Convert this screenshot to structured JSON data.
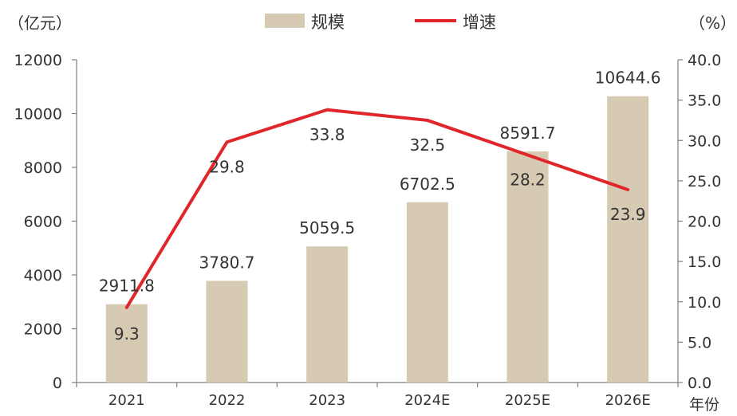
{
  "chart_data": {
    "type": "bar+line",
    "categories": [
      "2021",
      "2022",
      "2023",
      "2024E",
      "2025E",
      "2026E"
    ],
    "xlabel": "年份",
    "y_left": {
      "unit_label": "（亿元）",
      "ylim": [
        0,
        12000
      ],
      "ticks": [
        "0",
        "2000",
        "4000",
        "6000",
        "8000",
        "10000",
        "12000"
      ]
    },
    "y_right": {
      "unit_label": "（%）",
      "ylim": [
        0,
        40
      ],
      "ticks": [
        "0.0",
        "5.0",
        "10.0",
        "15.0",
        "20.0",
        "25.0",
        "30.0",
        "35.0",
        "40.0"
      ]
    },
    "series": [
      {
        "name": "规模",
        "kind": "bar",
        "axis": "left",
        "color": "#d6cab2",
        "values": [
          2911.8,
          3780.7,
          5059.5,
          6702.5,
          8591.7,
          10644.6
        ],
        "labels": [
          "2911.8",
          "3780.7",
          "5059.5",
          "6702.5",
          "8591.7",
          "10644.6"
        ]
      },
      {
        "name": "增速",
        "kind": "line",
        "axis": "right",
        "color": "#e0262b",
        "values": [
          9.3,
          29.8,
          33.8,
          32.5,
          28.2,
          23.9
        ],
        "labels": [
          "9.3",
          "29.8",
          "33.8",
          "32.5",
          "28.2",
          "23.9"
        ]
      }
    ],
    "legend": {
      "placement": "top-center"
    },
    "grid": false
  }
}
